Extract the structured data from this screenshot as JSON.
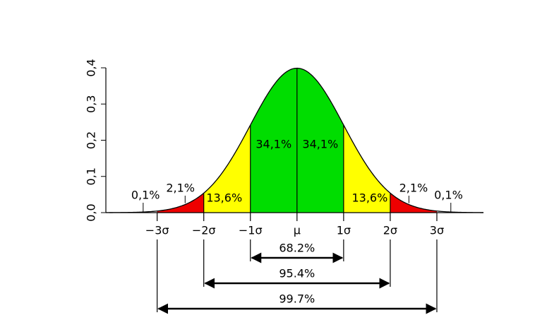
{
  "chart_data": {
    "type": "normal",
    "xlim": [
      -4.1,
      4
    ],
    "ylim": [
      0,
      0.4
    ],
    "yticks": [
      {
        "value": 0,
        "label": "0,0"
      },
      {
        "value": 0.1,
        "label": "0,1"
      },
      {
        "value": 0.2,
        "label": "0,2"
      },
      {
        "value": 0.3,
        "label": "0,3"
      },
      {
        "value": 0.4,
        "label": "0,4"
      }
    ],
    "xticks": [
      {
        "value": -3,
        "label": "−3σ"
      },
      {
        "value": -2,
        "label": "−2σ"
      },
      {
        "value": -1,
        "label": "−1σ"
      },
      {
        "value": 0,
        "label": "μ"
      },
      {
        "value": 1,
        "label": "1σ"
      },
      {
        "value": 2,
        "label": "2σ"
      },
      {
        "value": 3,
        "label": "3σ"
      }
    ],
    "regions": {
      "bounds": [
        -4.1,
        -3,
        -2,
        -1,
        0,
        1,
        2,
        3,
        4
      ],
      "values": [
        0.1,
        2.1,
        13.6,
        34.1,
        34.1,
        13.6,
        2.1,
        0.1
      ],
      "value_labels": [
        "0,1%",
        "2,1%",
        "13,6%",
        "34,1%",
        "34,1%",
        "13,6%",
        "2,1%",
        "0,1%"
      ],
      "colors": [
        "#ffffff",
        "#ee0000",
        "#ffff00",
        "#00dd00",
        "#00dd00",
        "#ffff00",
        "#ee0000",
        "#ffffff"
      ]
    },
    "intervals": {
      "half_widths": [
        1,
        2,
        3
      ],
      "values": [
        68.2,
        95.4,
        99.7
      ],
      "value_labels": [
        "68.2%",
        "95.4%",
        "99.7%"
      ]
    }
  }
}
